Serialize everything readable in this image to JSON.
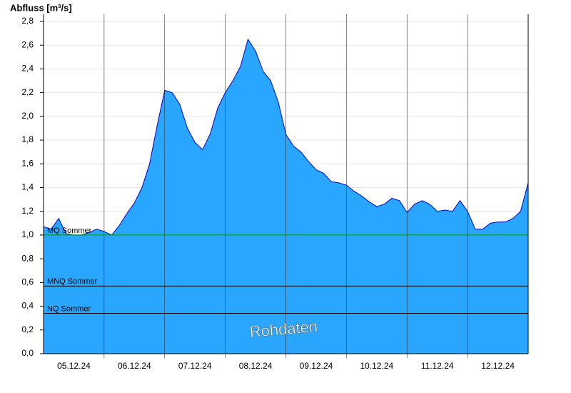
{
  "chart_data": {
    "type": "area",
    "y_label": "Abfluss [m³/s]",
    "watermark": "Rohdaten",
    "categories": [
      null,
      null,
      null,
      null,
      "05.12.24",
      null,
      null,
      null,
      null,
      null,
      null,
      null,
      "06.12.24",
      null,
      null,
      null,
      null,
      null,
      null,
      null,
      "07.12.24",
      null,
      null,
      null,
      null,
      null,
      null,
      null,
      "08.12.24",
      null,
      null,
      null,
      null,
      null,
      null,
      null,
      "09.12.24",
      null,
      null,
      null,
      null,
      null,
      null,
      null,
      "10.12.24",
      null,
      null,
      null,
      null,
      null,
      null,
      null,
      "11.12.24",
      null,
      null,
      null,
      null,
      null,
      null,
      null,
      "12.12.24",
      null,
      null,
      null,
      null
    ],
    "series": [
      {
        "name": "Abfluss",
        "color": "#29a6ff",
        "line_color": "#0000cc",
        "values": [
          1.07,
          1.05,
          1.14,
          1.01,
          1.0,
          1.0,
          1.02,
          1.05,
          1.03,
          1.0,
          1.08,
          1.18,
          1.27,
          1.4,
          1.6,
          1.92,
          2.22,
          2.2,
          2.1,
          1.9,
          1.78,
          1.72,
          1.85,
          2.07,
          2.2,
          2.3,
          2.42,
          2.65,
          2.55,
          2.38,
          2.3,
          2.12,
          1.85,
          1.75,
          1.7,
          1.62,
          1.55,
          1.52,
          1.45,
          1.44,
          1.42,
          1.37,
          1.33,
          1.28,
          1.24,
          1.26,
          1.31,
          1.29,
          1.19,
          1.26,
          1.29,
          1.26,
          1.2,
          1.21,
          1.2,
          1.29,
          1.2,
          1.05,
          1.05,
          1.1,
          1.11,
          1.11,
          1.14,
          1.2,
          1.44
        ]
      }
    ],
    "reference_lines": [
      {
        "label": "MQ Sommer",
        "value": 1.0,
        "color": "#009900"
      },
      {
        "label": "MNQ Sommer",
        "value": 0.57,
        "color": "#000000"
      },
      {
        "label": "NQ Sommer",
        "value": 0.34,
        "color": "#000000"
      }
    ],
    "ylim": [
      0,
      2.8
    ],
    "yticks": [
      {
        "value": 0,
        "label": "0,0"
      },
      {
        "value": 0.2,
        "label": "0,2"
      },
      {
        "value": 0.4,
        "label": "0,4"
      },
      {
        "value": 0.6,
        "label": "0,6"
      },
      {
        "value": 0.8,
        "label": "0,8"
      },
      {
        "value": 1.0,
        "label": "1,0"
      },
      {
        "value": 1.2,
        "label": "1,2"
      },
      {
        "value": 1.4,
        "label": "1,4"
      },
      {
        "value": 1.6,
        "label": "1,6"
      },
      {
        "value": 1.8,
        "label": "1,8"
      },
      {
        "value": 2.0,
        "label": "2,0"
      },
      {
        "value": 2.2,
        "label": "2,2"
      },
      {
        "value": 2.4,
        "label": "2,4"
      },
      {
        "value": 2.6,
        "label": "2,6"
      },
      {
        "value": 2.8,
        "label": "2,8"
      }
    ],
    "grid": true
  }
}
